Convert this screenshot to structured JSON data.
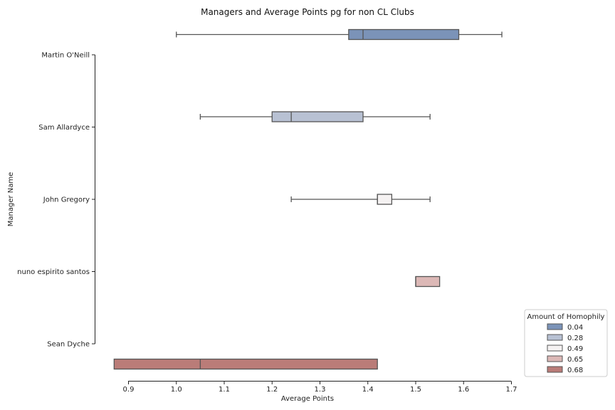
{
  "chart_data": {
    "type": "boxplot",
    "orientation": "horizontal",
    "title": "Managers and Average Points pg for non CL Clubs",
    "xlabel": "Average Points",
    "ylabel": "Manager Name",
    "xlim": [
      0.87,
      1.7
    ],
    "xticks": [
      "0.9",
      "1.0",
      "1.1",
      "1.2",
      "1.3",
      "1.4",
      "1.5",
      "1.6",
      "1.7"
    ],
    "categories": [
      "Martin O'Neill",
      "Sam Allardyce",
      "John Gregory",
      "nuno espirito santos",
      "Sean Dyche"
    ],
    "legend": {
      "title": "Amount of Homophily",
      "position": "lower-right",
      "entries": [
        "0.04",
        "0.28",
        "0.49",
        "0.65",
        "0.68"
      ]
    },
    "colors": [
      "#7b93b8",
      "#b8c1d3",
      "#f5f2f2",
      "#dcb8b6",
      "#ba7c78"
    ],
    "series": [
      {
        "name": "0.04",
        "category": "Martin O'Neill",
        "whislo": 1.0,
        "q1": 1.36,
        "med": 1.39,
        "q3": 1.59,
        "whishi": 1.68
      },
      {
        "name": "0.28",
        "category": "Sam Allardyce",
        "whislo": 1.05,
        "q1": 1.2,
        "med": 1.24,
        "q3": 1.39,
        "whishi": 1.53
      },
      {
        "name": "0.49",
        "category": "John Gregory",
        "whislo": 1.24,
        "q1": 1.42,
        "med": 1.42,
        "q3": 1.45,
        "whishi": 1.53
      },
      {
        "name": "0.65",
        "category": "nuno espirito santos",
        "whislo": 1.5,
        "q1": 1.5,
        "med": 1.5,
        "q3": 1.55,
        "whishi": 1.55
      },
      {
        "name": "0.68",
        "category": "Sean Dyche",
        "whislo": 0.87,
        "q1": 0.87,
        "med": 1.05,
        "q3": 1.42,
        "whishi": 1.42
      }
    ]
  }
}
